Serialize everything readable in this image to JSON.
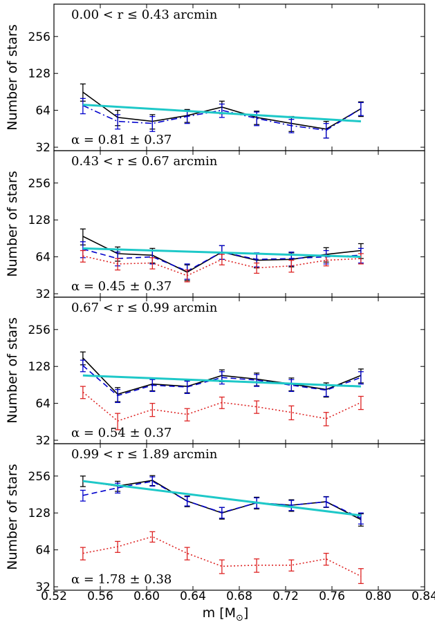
{
  "chart_data": [
    {
      "type": "line",
      "panel_label": "0.00 < r ≤ 0.43 arcmin",
      "alpha_label": "α = 0.81 ± 0.37",
      "ylabel": "Number of stars",
      "yscale": "log2",
      "yticks": [
        32,
        64,
        128,
        256
      ],
      "ylim": [
        30,
        470
      ],
      "xlim": [
        0.52,
        0.84
      ],
      "series": [
        {
          "style": "solid",
          "color": "#000000",
          "x": [
            0.545,
            0.575,
            0.605,
            0.635,
            0.665,
            0.695,
            0.725,
            0.755,
            0.785
          ],
          "y": [
            90,
            56,
            52,
            58,
            68,
            56,
            50,
            45,
            66
          ],
          "err": [
            [
              76,
              105
            ],
            [
              48,
              64
            ],
            [
              45,
              59
            ],
            [
              51,
              65
            ],
            [
              60,
              76
            ],
            [
              49,
              63
            ],
            [
              43,
              57
            ],
            [
              38,
              52
            ],
            [
              57,
              75
            ]
          ]
        },
        {
          "style": "dashdot",
          "color": "#0000cc",
          "x": [
            0.545,
            0.575,
            0.605,
            0.635,
            0.665,
            0.695,
            0.725,
            0.755,
            0.785
          ],
          "y": [
            70,
            52,
            50,
            57,
            64,
            55,
            48,
            44,
            66
          ],
          "err": [
            [
              60,
              80
            ],
            [
              45,
              59
            ],
            [
              43,
              57
            ],
            [
              50,
              64
            ],
            [
              56,
              72
            ],
            [
              48,
              62
            ],
            [
              42,
              54
            ],
            [
              38,
              50
            ],
            [
              58,
              74
            ]
          ]
        },
        {
          "style": "fit",
          "color": "#1ec8c8",
          "x": [
            0.545,
            0.785
          ],
          "y": [
            71,
            52
          ]
        }
      ]
    },
    {
      "type": "line",
      "panel_label": "0.43 < r ≤ 0.67 arcmin",
      "alpha_label": "α = 0.45 ± 0.37",
      "ylabel": "Number of stars",
      "yscale": "log2",
      "yticks": [
        32,
        64,
        128,
        256
      ],
      "ylim": [
        30,
        470
      ],
      "xlim": [
        0.52,
        0.84
      ],
      "series": [
        {
          "style": "solid",
          "color": "#000000",
          "x": [
            0.545,
            0.575,
            0.605,
            0.635,
            0.665,
            0.695,
            0.725,
            0.755,
            0.785
          ],
          "y": [
            94,
            68,
            66,
            48,
            70,
            60,
            61,
            67,
            72
          ],
          "err": [
            [
              80,
              108
            ],
            [
              59,
              77
            ],
            [
              57,
              75
            ],
            [
              41,
              55
            ],
            [
              61,
              79
            ],
            [
              52,
              68
            ],
            [
              53,
              69
            ],
            [
              58,
              76
            ],
            [
              62,
              82
            ]
          ]
        },
        {
          "style": "dashed",
          "color": "#0000cc",
          "x": [
            0.545,
            0.575,
            0.605,
            0.635,
            0.665,
            0.695,
            0.725,
            0.755,
            0.785
          ],
          "y": [
            74,
            62,
            64,
            49,
            70,
            61,
            62,
            64,
            66
          ],
          "err": [
            [
              63,
              85
            ],
            [
              54,
              70
            ],
            [
              56,
              72
            ],
            [
              42,
              56
            ],
            [
              61,
              79
            ],
            [
              53,
              69
            ],
            [
              54,
              70
            ],
            [
              56,
              72
            ],
            [
              57,
              75
            ]
          ]
        },
        {
          "style": "dotted",
          "color": "#dd2222",
          "x": [
            0.545,
            0.575,
            0.605,
            0.635,
            0.665,
            0.695,
            0.725,
            0.755,
            0.785
          ],
          "y": [
            65,
            56,
            57,
            45,
            61,
            52,
            54,
            60,
            62
          ],
          "err": [
            [
              58,
              72
            ],
            [
              50,
              62
            ],
            [
              51,
              63
            ],
            [
              40,
              50
            ],
            [
              55,
              67
            ],
            [
              47,
              57
            ],
            [
              48,
              60
            ],
            [
              54,
              66
            ],
            [
              56,
              68
            ]
          ]
        },
        {
          "style": "fit",
          "color": "#1ec8c8",
          "x": [
            0.545,
            0.785
          ],
          "y": [
            75,
            64
          ]
        }
      ]
    },
    {
      "type": "line",
      "panel_label": "0.67 < r ≤ 0.99 arcmin",
      "alpha_label": "α = 0.54 ± 0.37",
      "ylabel": "Number of stars",
      "yscale": "log2",
      "yticks": [
        32,
        64,
        128,
        256
      ],
      "ylim": [
        30,
        470
      ],
      "xlim": [
        0.52,
        0.84
      ],
      "series": [
        {
          "style": "solid",
          "color": "#000000",
          "x": [
            0.545,
            0.575,
            0.605,
            0.635,
            0.665,
            0.695,
            0.725,
            0.755,
            0.785
          ],
          "y": [
            150,
            76,
            92,
            88,
            108,
            101,
            92,
            83,
            108
          ],
          "err": [
            [
              132,
              168
            ],
            [
              66,
              86
            ],
            [
              81,
              103
            ],
            [
              78,
              98
            ],
            [
              96,
              120
            ],
            [
              89,
              113
            ],
            [
              81,
              103
            ],
            [
              72,
              94
            ],
            [
              94,
              122
            ]
          ]
        },
        {
          "style": "dashed",
          "color": "#0000cc",
          "x": [
            0.545,
            0.575,
            0.605,
            0.635,
            0.665,
            0.695,
            0.725,
            0.755,
            0.785
          ],
          "y": [
            130,
            74,
            90,
            87,
            104,
            99,
            90,
            82,
            104
          ],
          "err": [
            [
              116,
              144
            ],
            [
              65,
              83
            ],
            [
              80,
              100
            ],
            [
              77,
              97
            ],
            [
              92,
              116
            ],
            [
              88,
              110
            ],
            [
              80,
              100
            ],
            [
              73,
              91
            ],
            [
              92,
              116
            ]
          ]
        },
        {
          "style": "dotted",
          "color": "#dd2222",
          "x": [
            0.545,
            0.575,
            0.605,
            0.635,
            0.665,
            0.695,
            0.725,
            0.755,
            0.785
          ],
          "y": [
            79,
            46,
            57,
            52,
            65,
            60,
            54,
            48,
            65
          ],
          "err": [
            [
              70,
              88
            ],
            [
              39,
              53
            ],
            [
              50,
              64
            ],
            [
              46,
              58
            ],
            [
              58,
              72
            ],
            [
              53,
              67
            ],
            [
              47,
              61
            ],
            [
              42,
              54
            ],
            [
              57,
              73
            ]
          ]
        },
        {
          "style": "fit",
          "color": "#1ec8c8",
          "x": [
            0.545,
            0.785
          ],
          "y": [
            108,
            88
          ]
        }
      ]
    },
    {
      "type": "line",
      "panel_label": "0.99 < r ≤ 1.89 arcmin",
      "alpha_label": "α = 1.78 ± 0.38",
      "ylabel": "Number of stars",
      "yscale": "log2",
      "yticks": [
        32,
        64,
        128,
        256
      ],
      "ylim": [
        30,
        470
      ],
      "xlim": [
        0.52,
        0.84
      ],
      "series": [
        {
          "style": "solid",
          "color": "#000000",
          "x": [
            0.545,
            0.575,
            0.605,
            0.635,
            0.665,
            0.695,
            0.725,
            0.755,
            0.785
          ],
          "y": [
            233,
            212,
            236,
            160,
            128,
            155,
            148,
            158,
            113
          ],
          "err": [
            [
              210,
              256
            ],
            [
              192,
              232
            ],
            [
              214,
              258
            ],
            [
              144,
              176
            ],
            [
              114,
              142
            ],
            [
              138,
              172
            ],
            [
              132,
              164
            ],
            [
              142,
              174
            ],
            [
              100,
              126
            ]
          ]
        },
        {
          "style": "dashed",
          "color": "#0000cc",
          "x": [
            0.545,
            0.575,
            0.605,
            0.635,
            0.665,
            0.695,
            0.725,
            0.755,
            0.785
          ],
          "y": [
            178,
            205,
            232,
            160,
            129,
            155,
            148,
            158,
            116
          ],
          "err": [
            [
              160,
              196
            ],
            [
              186,
              224
            ],
            [
              212,
              252
            ],
            [
              146,
              174
            ],
            [
              116,
              142
            ],
            [
              140,
              170
            ],
            [
              134,
              162
            ],
            [
              143,
              173
            ],
            [
              104,
              128
            ]
          ]
        },
        {
          "style": "dotted",
          "color": "#dd2222",
          "x": [
            0.545,
            0.575,
            0.605,
            0.635,
            0.665,
            0.695,
            0.725,
            0.755,
            0.785
          ],
          "y": [
            60,
            68,
            82,
            60,
            47,
            48,
            48,
            54,
            39
          ],
          "err": [
            [
              53,
              67
            ],
            [
              61,
              75
            ],
            [
              74,
              90
            ],
            [
              53,
              67
            ],
            [
              41,
              53
            ],
            [
              42,
              54
            ],
            [
              43,
              53
            ],
            [
              48,
              60
            ],
            [
              34,
              45
            ]
          ]
        },
        {
          "style": "fit",
          "color": "#1ec8c8",
          "x": [
            0.545,
            0.785
          ],
          "y": [
            233,
            122
          ]
        }
      ]
    }
  ],
  "x_axis": {
    "label": "m [M",
    "label_subscript": "⊙",
    "label_suffix": "]",
    "ticks": [
      "0.52",
      "0.56",
      "0.60",
      "0.64",
      "0.68",
      "0.72",
      "0.76",
      "0.80",
      "0.84"
    ]
  }
}
